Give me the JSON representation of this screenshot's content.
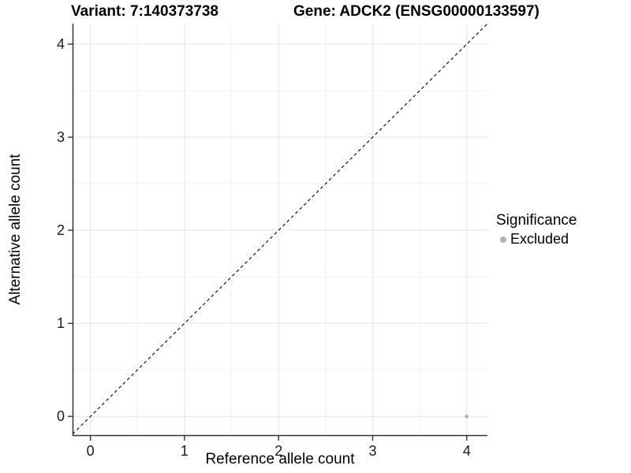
{
  "figure": {
    "title_left": "Variant: 7:140373738",
    "title_right": "Gene: ADCK2 (ENSG00000133597)"
  },
  "legend": {
    "title": "Significance",
    "items": [
      {
        "label": "Excluded",
        "color": "#b5b5b5"
      }
    ]
  },
  "chart_data": {
    "type": "scatter",
    "title": "Variant: 7:140373738   Gene: ADCK2 (ENSG00000133597)",
    "xlabel": "Reference allele count",
    "ylabel": "Alternative allele count",
    "xlim": [
      -0.19,
      4.22
    ],
    "ylim": [
      -0.21,
      4.22
    ],
    "x_ticks": [
      0,
      1,
      2,
      3,
      4
    ],
    "y_ticks": [
      0,
      1,
      2,
      3,
      4
    ],
    "minor_ticks": [
      0.5,
      1.5,
      2.5,
      3.5
    ],
    "grid": true,
    "legend_position": "right",
    "identity_line": {
      "slope": 1,
      "intercept": 0,
      "style": "dashed",
      "color": "#000000"
    },
    "series": [
      {
        "name": "Excluded",
        "color": "#b5b5b5",
        "points": [
          {
            "x": 4,
            "y": 0
          }
        ]
      }
    ],
    "colors": {
      "grid_major": "#e6e6e6",
      "grid_minor": "#f2f2f2",
      "axis": "#333333",
      "tick_text": "#1a1a1a",
      "background": "#ffffff"
    }
  }
}
